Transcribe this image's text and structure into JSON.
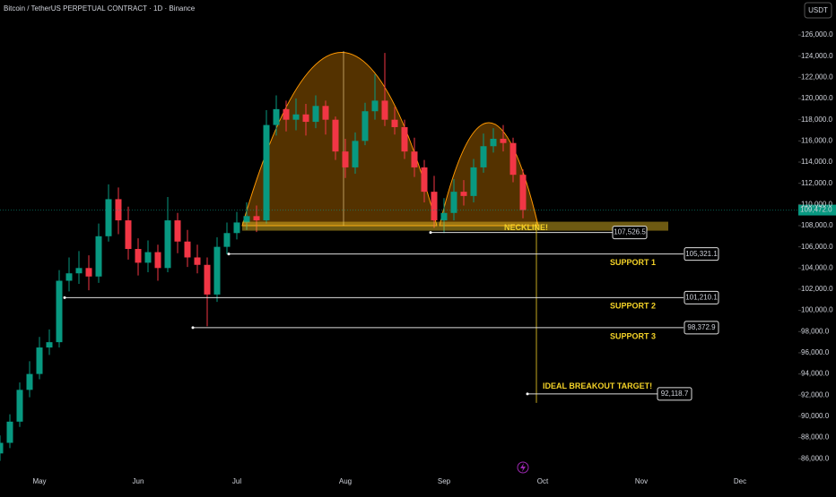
{
  "chart_data": {
    "type": "candlestick",
    "title": "Bitcoin / TetherUS PERPETUAL CONTRACT · 1D · Binance",
    "currency_button": "USDT",
    "categories": [
      null,
      null,
      null,
      null,
      "May",
      null,
      null,
      null,
      null,
      null,
      null,
      null,
      null,
      null,
      "Jun",
      null,
      null,
      null,
      null,
      null,
      null,
      null,
      null,
      null,
      "Jul",
      null,
      null,
      null,
      null,
      null,
      null,
      null,
      null,
      null,
      null,
      "Aug",
      null,
      null,
      null,
      null,
      null,
      null,
      null,
      null,
      null,
      "Sep",
      null,
      null,
      null,
      null,
      null,
      null,
      null,
      null,
      null,
      "Oct",
      null,
      null,
      null,
      null,
      null,
      null,
      null,
      null,
      null,
      "Nov",
      null,
      null,
      null,
      null,
      null,
      null,
      null,
      null,
      null,
      "Dec",
      null,
      null,
      null,
      null,
      null
    ],
    "open": [
      86500,
      87500,
      89500,
      92500,
      94000,
      96500,
      97000,
      102800,
      103500,
      104000,
      103200,
      107000,
      110500,
      108500,
      105800,
      104500,
      105500,
      104000,
      108500,
      106500,
      105000,
      104300,
      101500,
      106000,
      107300,
      108300,
      108900,
      108500,
      117500,
      119000,
      118000,
      118500,
      117800,
      119300,
      118000,
      115000,
      113500,
      116000,
      118800,
      119800,
      118000,
      117300,
      115000,
      113500,
      111200,
      108500,
      109200,
      111200,
      110800,
      113500,
      115500,
      116200,
      115800,
      112800,
      null,
      null,
      null,
      null,
      null,
      null,
      null,
      null,
      null,
      null,
      null,
      null,
      null,
      null,
      null,
      null,
      null,
      null,
      null,
      null,
      null,
      null,
      null,
      null,
      null,
      null,
      null
    ],
    "high": [
      88200,
      90200,
      93200,
      95200,
      97500,
      98200,
      103800,
      105000,
      105600,
      105200,
      108200,
      111900,
      111600,
      109800,
      106800,
      106600,
      106200,
      110700,
      109200,
      107600,
      106200,
      105000,
      106900,
      108300,
      109300,
      110200,
      109900,
      118900,
      120300,
      119800,
      120000,
      119500,
      120300,
      119800,
      118300,
      116200,
      116800,
      119600,
      122300,
      124300,
      119200,
      118000,
      116300,
      114200,
      112700,
      110600,
      112400,
      112300,
      114300,
      116700,
      117200,
      117500,
      116300,
      113300,
      null,
      null,
      null,
      null,
      null,
      null,
      null,
      null,
      null,
      null,
      null,
      null,
      null,
      null,
      null,
      null,
      null,
      null,
      null,
      null,
      null,
      null,
      null,
      null,
      null,
      null,
      null
    ],
    "low": [
      85800,
      87000,
      89000,
      91800,
      93500,
      95800,
      96500,
      101800,
      102500,
      101900,
      102600,
      106500,
      107200,
      104800,
      103300,
      103600,
      102800,
      103600,
      105400,
      104100,
      103500,
      98500,
      100800,
      105300,
      106700,
      107600,
      107400,
      108200,
      116500,
      116900,
      117000,
      116500,
      117200,
      116600,
      114200,
      112500,
      112900,
      115600,
      118000,
      117400,
      116600,
      114300,
      112600,
      110200,
      107800,
      107300,
      108500,
      109900,
      110200,
      113000,
      114900,
      115000,
      112100,
      108700,
      null,
      null,
      null,
      null,
      null,
      null,
      null,
      null,
      null,
      null,
      null,
      null,
      null,
      null,
      null,
      null,
      null,
      null,
      null,
      null,
      null,
      null,
      null,
      null,
      null,
      null,
      null
    ],
    "close": [
      87500,
      89500,
      92500,
      94000,
      96500,
      97000,
      102800,
      103500,
      104000,
      103200,
      107000,
      110500,
      108500,
      105800,
      104500,
      105500,
      104000,
      108500,
      106500,
      105000,
      104300,
      101500,
      106000,
      107300,
      108300,
      108900,
      108500,
      117500,
      119000,
      118000,
      118500,
      117800,
      119300,
      118000,
      115000,
      113500,
      116000,
      118800,
      119800,
      118000,
      117300,
      115000,
      113500,
      111200,
      108500,
      109200,
      111200,
      110800,
      113500,
      115500,
      116200,
      115800,
      112800,
      109472,
      null,
      null,
      null,
      null,
      null,
      null,
      null,
      null,
      null,
      null,
      null,
      null,
      null,
      null,
      null,
      null,
      null,
      null,
      null,
      null,
      null,
      null,
      null,
      null,
      null,
      null,
      null
    ],
    "up_color": "#089981",
    "down_color": "#f23645",
    "ylim": [
      84500,
      129300
    ],
    "yticks": [
      {
        "value": 86000,
        "label": "86,000.0"
      },
      {
        "value": 88000,
        "label": "88,000.0"
      },
      {
        "value": 90000,
        "label": "90,000.0"
      },
      {
        "value": 92000,
        "label": "92,000.0"
      },
      {
        "value": 94000,
        "label": "94,000.0"
      },
      {
        "value": 96000,
        "label": "96,000.0"
      },
      {
        "value": 98000,
        "label": "98,000.0"
      },
      {
        "value": 100000,
        "label": "100,000.0"
      },
      {
        "value": 102000,
        "label": "102,000.0"
      },
      {
        "value": 104000,
        "label": "104,000.0"
      },
      {
        "value": 106000,
        "label": "106,000.0"
      },
      {
        "value": 108000,
        "label": "108,000.0"
      },
      {
        "value": 110000,
        "label": "110,000.0"
      },
      {
        "value": 112000,
        "label": "112,000.0"
      },
      {
        "value": 114000,
        "label": "114,000.0"
      },
      {
        "value": 116000,
        "label": "116,000.0"
      },
      {
        "value": 118000,
        "label": "118,000.0"
      },
      {
        "value": 120000,
        "label": "120,000.0"
      },
      {
        "value": 122000,
        "label": "122,000.0"
      },
      {
        "value": 124000,
        "label": "124,000.0"
      },
      {
        "value": 126000,
        "label": "126,000.0"
      }
    ],
    "last_price": {
      "value": 109472,
      "label": "109,472.0"
    },
    "levels": [
      {
        "name": "NECKLINE!",
        "value": 107526.5,
        "label": "107,526.5"
      },
      {
        "name": "SUPPORT 1",
        "value": 105321.1,
        "label": "105,321.1"
      },
      {
        "name": "SUPPORT 2",
        "value": 101210.1,
        "label": "101,210.1"
      },
      {
        "name": "SUPPORT 3",
        "value": 98372.9,
        "label": "98,372.9"
      },
      {
        "name": "IDEAL BREAKOUT TARGET!",
        "value": 92118.7,
        "label": "92,118.7"
      }
    ]
  }
}
